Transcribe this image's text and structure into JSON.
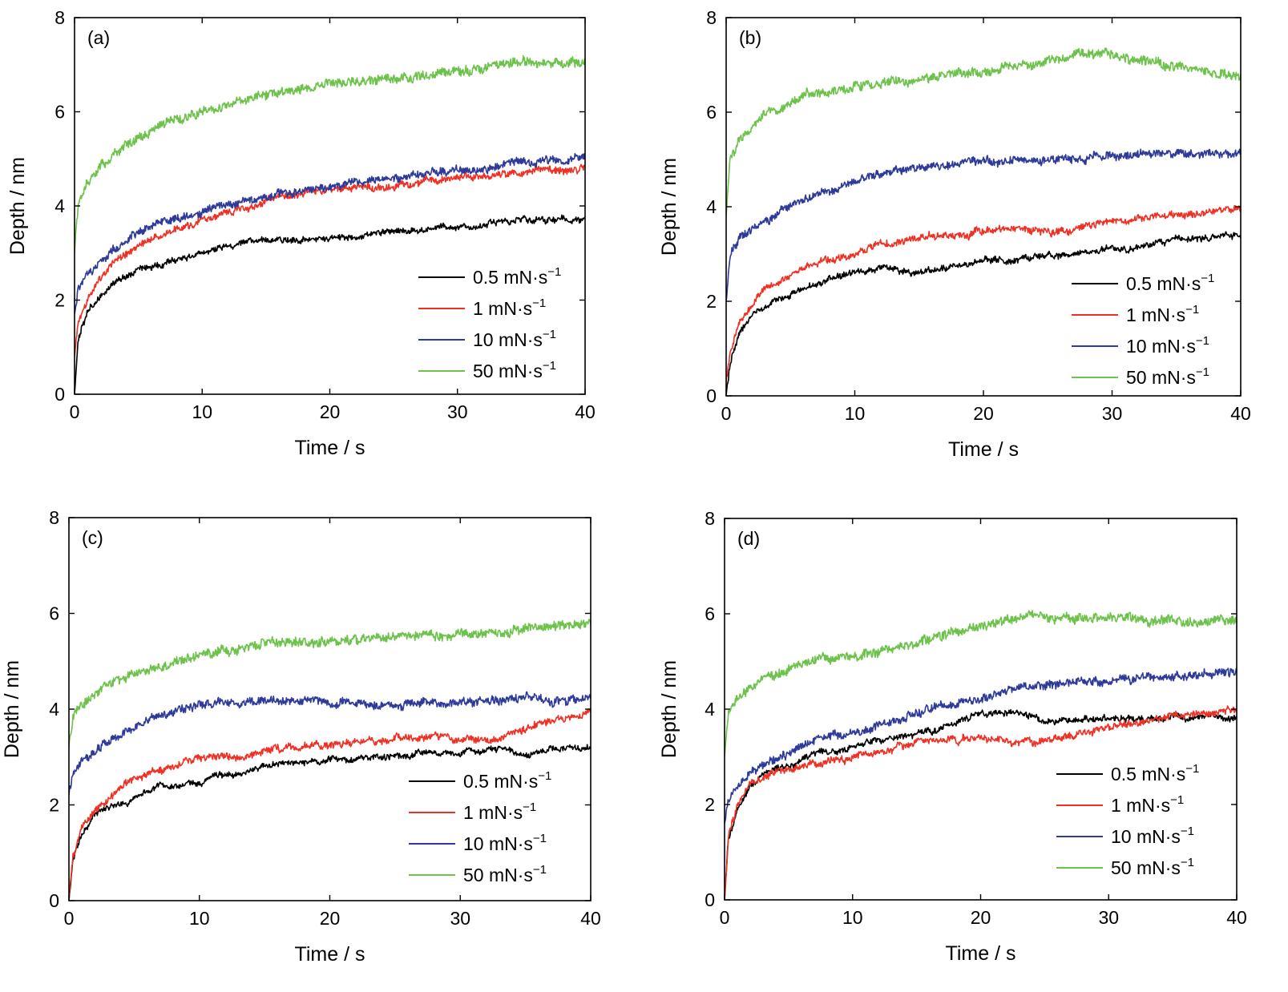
{
  "chart_data": [
    {
      "type": "line",
      "panel_label": "(a)",
      "xlabel": "Time / s",
      "ylabel": "Depth / nm",
      "xlim": [
        0,
        40
      ],
      "ylim": [
        0,
        8
      ],
      "xticks": [
        0,
        10,
        20,
        30,
        40
      ],
      "yticks": [
        0,
        2,
        4,
        6,
        8
      ],
      "grid": false,
      "legend_position": "lower-right",
      "x": [
        0,
        0.3,
        1,
        2,
        3,
        5,
        7,
        10,
        15,
        20,
        25,
        30,
        35,
        40
      ],
      "series": [
        {
          "name": "0.5 mN·s",
          "name_sup": "−1",
          "color": "#000000",
          "values": [
            0,
            1.15,
            1.7,
            2.1,
            2.35,
            2.6,
            2.8,
            3.0,
            3.3,
            3.3,
            3.45,
            3.55,
            3.7,
            3.7
          ]
        },
        {
          "name": "1 mN·s",
          "name_sup": "−1",
          "color": "#ee3124",
          "values": [
            0.8,
            1.5,
            2.0,
            2.5,
            2.8,
            3.15,
            3.4,
            3.7,
            4.1,
            4.35,
            4.45,
            4.6,
            4.7,
            4.85
          ]
        },
        {
          "name": "10 mN·s",
          "name_sup": "−1",
          "color": "#2d3a9a",
          "values": [
            1.7,
            2.2,
            2.55,
            2.85,
            3.1,
            3.45,
            3.65,
            3.9,
            4.2,
            4.4,
            4.6,
            4.75,
            4.9,
            5.05
          ]
        },
        {
          "name": "50 mN·s",
          "name_sup": "−1",
          "color": "#6cc24a",
          "values": [
            3.0,
            4.1,
            4.5,
            4.85,
            5.1,
            5.45,
            5.75,
            6.0,
            6.35,
            6.6,
            6.7,
            6.85,
            7.05,
            7.05
          ]
        }
      ]
    },
    {
      "type": "line",
      "panel_label": "(b)",
      "xlabel": "Time / s",
      "ylabel": "Depth / nm",
      "xlim": [
        0,
        40
      ],
      "ylim": [
        0,
        8
      ],
      "xticks": [
        0,
        10,
        20,
        30,
        40
      ],
      "yticks": [
        0,
        2,
        4,
        6,
        8
      ],
      "grid": false,
      "legend_position": "lower-right",
      "x": [
        0,
        0.3,
        1,
        2,
        3,
        5,
        7,
        10,
        12,
        15,
        20,
        25,
        27,
        30,
        35,
        40
      ],
      "series": [
        {
          "name": "0.5 mN·s",
          "name_sup": "−1",
          "color": "#000000",
          "values": [
            0,
            0.7,
            1.3,
            1.7,
            1.9,
            2.15,
            2.35,
            2.6,
            2.75,
            2.6,
            2.85,
            2.95,
            3.0,
            3.1,
            3.3,
            3.4
          ]
        },
        {
          "name": "1 mN·s",
          "name_sup": "−1",
          "color": "#ee3124",
          "values": [
            0.3,
            0.9,
            1.55,
            1.95,
            2.25,
            2.55,
            2.8,
            3.0,
            3.2,
            3.35,
            3.5,
            3.5,
            3.55,
            3.7,
            3.85,
            3.95
          ]
        },
        {
          "name": "10 mN·s",
          "name_sup": "−1",
          "color": "#2d3a9a",
          "values": [
            2.0,
            2.9,
            3.3,
            3.5,
            3.7,
            4.0,
            4.25,
            4.5,
            4.7,
            4.8,
            4.95,
            5.0,
            5.0,
            5.1,
            5.1,
            5.1
          ]
        },
        {
          "name": "50 mN·s",
          "name_sup": "−1",
          "color": "#6cc24a",
          "values": [
            3.8,
            5.0,
            5.4,
            5.75,
            5.95,
            6.2,
            6.4,
            6.55,
            6.6,
            6.7,
            6.85,
            7.05,
            7.2,
            7.2,
            6.95,
            6.75
          ]
        }
      ]
    },
    {
      "type": "line",
      "panel_label": "(c)",
      "xlabel": "Time / s",
      "ylabel": "Depth / nm",
      "xlim": [
        0,
        40
      ],
      "ylim": [
        0,
        8
      ],
      "xticks": [
        0,
        10,
        20,
        30,
        40
      ],
      "yticks": [
        0,
        2,
        4,
        6,
        8
      ],
      "grid": false,
      "legend_position": "lower-right",
      "x": [
        0,
        0.3,
        1,
        2,
        3,
        5,
        7,
        10,
        15,
        20,
        25,
        30,
        33,
        35,
        37,
        40
      ],
      "series": [
        {
          "name": "0.5 mN·s",
          "name_sup": "−1",
          "color": "#000000",
          "values": [
            0,
            0.8,
            1.4,
            1.8,
            1.95,
            2.15,
            2.35,
            2.5,
            2.8,
            2.95,
            3.05,
            3.1,
            3.2,
            3.0,
            3.2,
            3.2
          ]
        },
        {
          "name": "1 mN·s",
          "name_sup": "−1",
          "color": "#ee3124",
          "values": [
            0,
            0.9,
            1.55,
            1.9,
            2.15,
            2.5,
            2.75,
            2.95,
            3.1,
            3.3,
            3.4,
            3.4,
            3.4,
            3.6,
            3.75,
            3.95
          ]
        },
        {
          "name": "10 mN·s",
          "name_sup": "−1",
          "color": "#2d3a9a",
          "values": [
            2.2,
            2.6,
            2.9,
            3.1,
            3.3,
            3.65,
            3.9,
            4.1,
            4.15,
            4.15,
            4.1,
            4.15,
            4.2,
            4.3,
            4.15,
            4.25
          ]
        },
        {
          "name": "50 mN·s",
          "name_sup": "−1",
          "color": "#6cc24a",
          "values": [
            3.2,
            3.8,
            4.1,
            4.35,
            4.5,
            4.7,
            4.9,
            5.1,
            5.35,
            5.4,
            5.55,
            5.55,
            5.6,
            5.7,
            5.7,
            5.8
          ]
        }
      ]
    },
    {
      "type": "line",
      "panel_label": "(d)",
      "xlabel": "Time / s",
      "ylabel": "Depth / nm",
      "xlim": [
        0,
        40
      ],
      "ylim": [
        0,
        8
      ],
      "xticks": [
        0,
        10,
        20,
        30,
        40
      ],
      "yticks": [
        0,
        2,
        4,
        6,
        8
      ],
      "grid": false,
      "legend_position": "lower-right",
      "x": [
        0,
        0.3,
        1,
        2,
        3,
        5,
        7,
        10,
        15,
        20,
        23,
        25,
        30,
        35,
        40
      ],
      "series": [
        {
          "name": "0.5 mN·s",
          "name_sup": "−1",
          "color": "#000000",
          "values": [
            0,
            1.2,
            1.9,
            2.4,
            2.65,
            2.85,
            3.05,
            3.2,
            3.5,
            3.9,
            3.95,
            3.75,
            3.8,
            3.85,
            3.85
          ]
        },
        {
          "name": "1 mN·s",
          "name_sup": "−1",
          "color": "#ee3124",
          "values": [
            0,
            1.3,
            2.0,
            2.4,
            2.55,
            2.7,
            2.85,
            3.0,
            3.3,
            3.4,
            3.3,
            3.35,
            3.6,
            3.85,
            3.95
          ]
        },
        {
          "name": "10 mN·s",
          "name_sup": "−1",
          "color": "#2d3a9a",
          "values": [
            1.6,
            2.1,
            2.4,
            2.65,
            2.85,
            3.1,
            3.3,
            3.5,
            3.9,
            4.25,
            4.45,
            4.5,
            4.6,
            4.7,
            4.8
          ]
        },
        {
          "name": "50 mN·s",
          "name_sup": "−1",
          "color": "#6cc24a",
          "values": [
            3.0,
            3.9,
            4.2,
            4.45,
            4.65,
            4.85,
            5.0,
            5.1,
            5.4,
            5.75,
            5.9,
            5.95,
            5.9,
            5.85,
            5.85
          ]
        }
      ]
    }
  ]
}
